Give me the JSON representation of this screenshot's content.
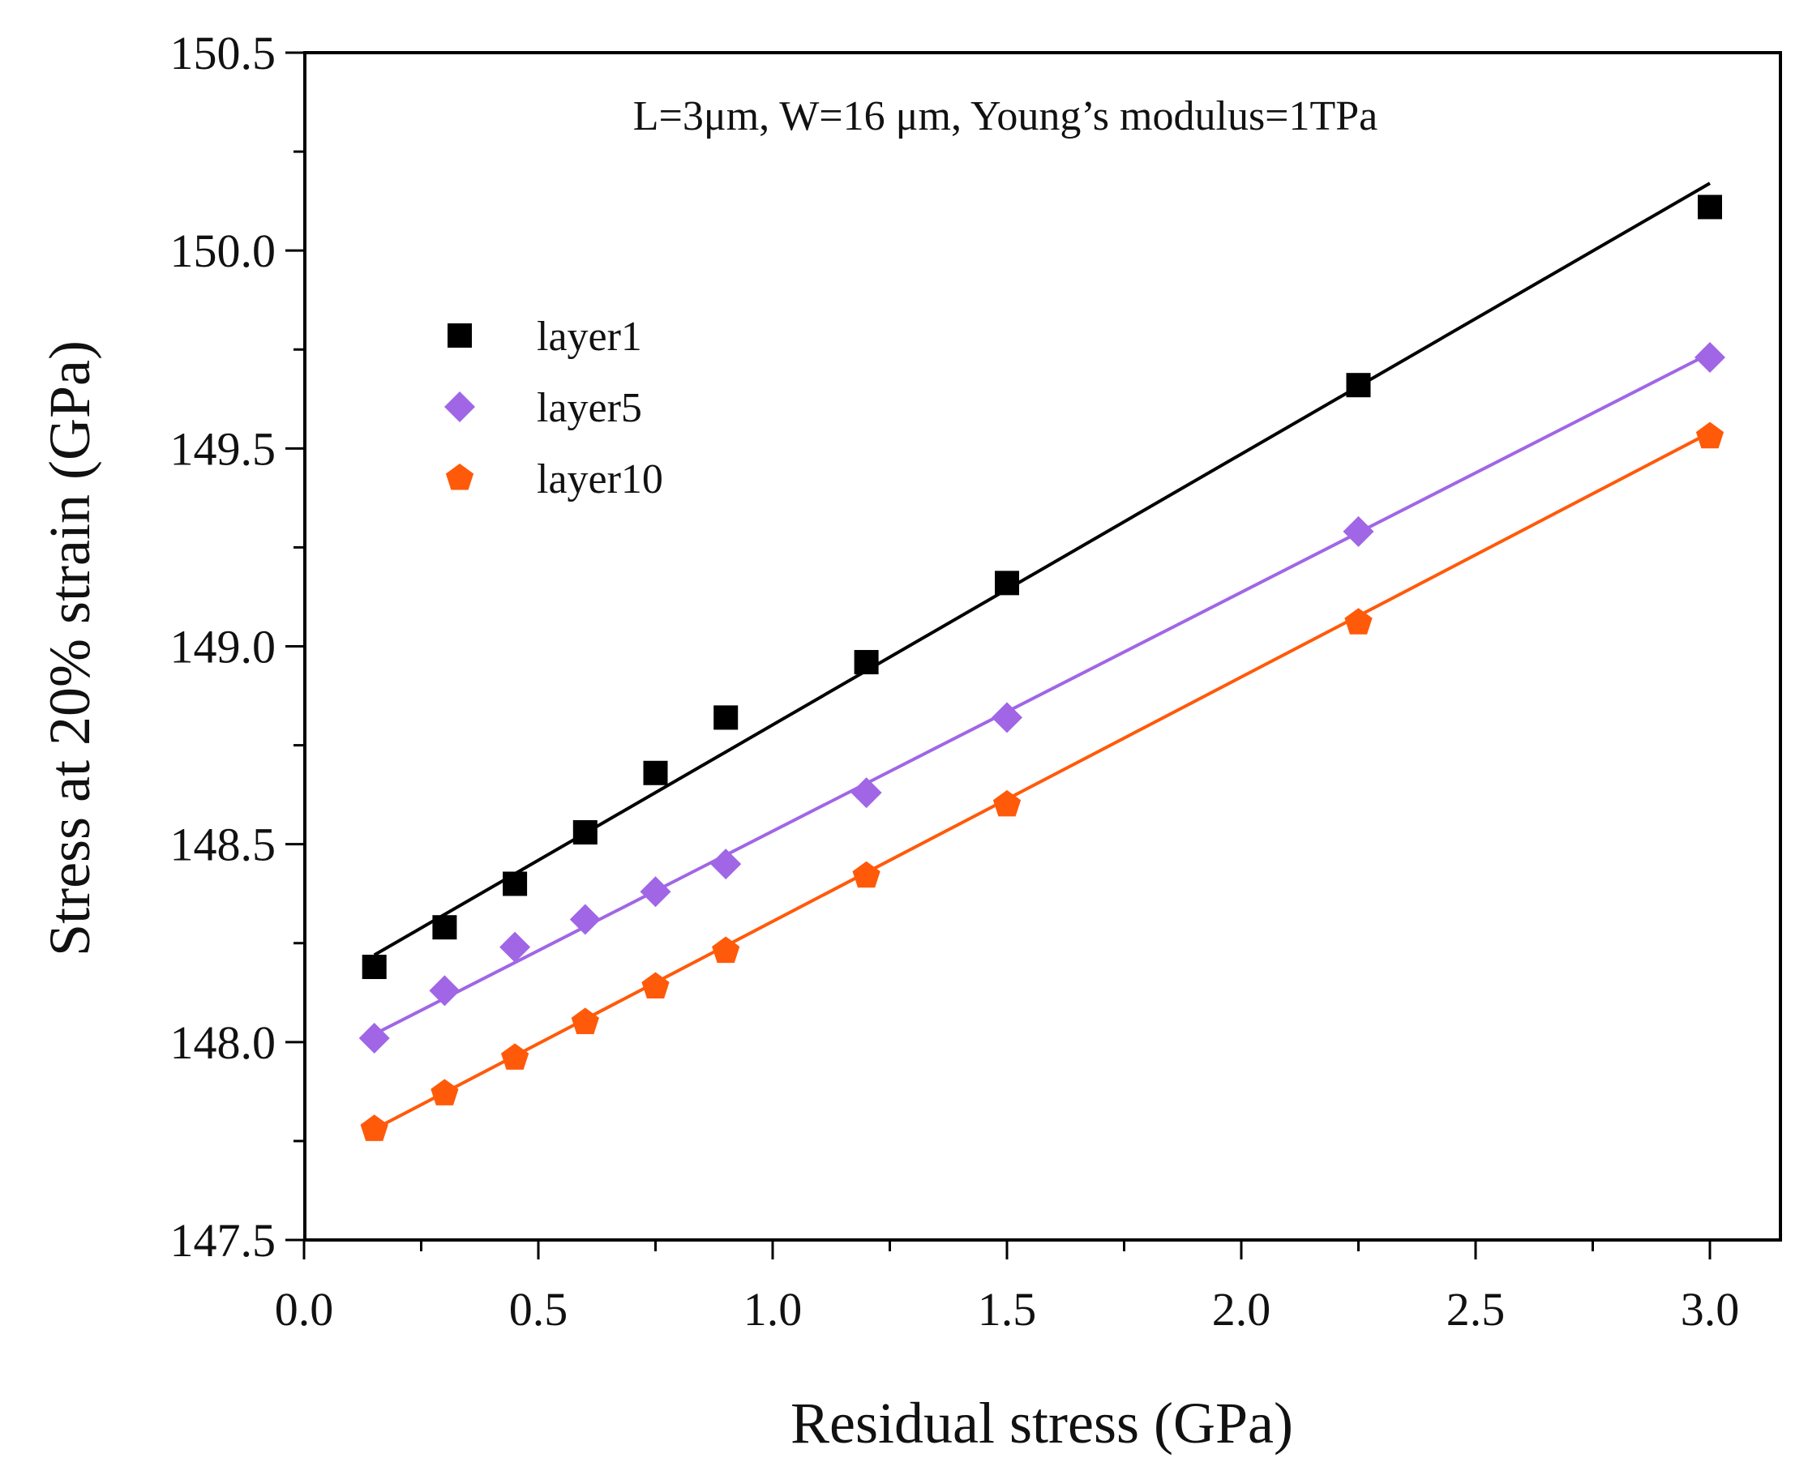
{
  "chart_data": {
    "type": "scatter",
    "title": "",
    "annotation": "L=3μm, W=16 μm, Young’s modulus=1TPa",
    "xlabel": "Residual stress (GPa)",
    "ylabel": "Stress at 20% strain (GPa)",
    "xlim": [
      0,
      3.15
    ],
    "ylim": [
      147.5,
      150.5
    ],
    "xticks": [
      "0.0",
      "0.5",
      "1.0",
      "1.5",
      "2.0",
      "2.5",
      "3.0"
    ],
    "yticks": [
      "147.5",
      "148.0",
      "148.5",
      "149.0",
      "149.5",
      "150.0",
      "150.5"
    ],
    "grid": false,
    "legend_position": "upper-left",
    "x": [
      0.15,
      0.3,
      0.45,
      0.6,
      0.75,
      0.9,
      1.2,
      1.5,
      2.25,
      3.0
    ],
    "series": [
      {
        "name": "layer1",
        "marker": "square",
        "color": "#000000",
        "values": [
          148.19,
          148.29,
          148.4,
          148.53,
          148.68,
          148.82,
          148.96,
          149.16,
          149.66,
          150.11
        ],
        "fit": [
          [
            0.15,
            148.22
          ],
          [
            3.0,
            150.17
          ]
        ]
      },
      {
        "name": "layer5",
        "marker": "diamond",
        "color": "#a066e6",
        "values": [
          148.01,
          148.13,
          148.24,
          148.31,
          148.38,
          148.45,
          148.63,
          148.82,
          149.29,
          149.73
        ],
        "fit": [
          [
            0.15,
            148.02
          ],
          [
            3.0,
            149.74
          ]
        ]
      },
      {
        "name": "layer10",
        "marker": "pentagon",
        "color": "#ff5a0a",
        "values": [
          147.78,
          147.87,
          147.96,
          148.05,
          148.14,
          148.23,
          148.42,
          148.6,
          149.06,
          149.53
        ],
        "fit": [
          [
            0.15,
            147.78
          ],
          [
            3.0,
            149.54
          ]
        ]
      }
    ]
  }
}
